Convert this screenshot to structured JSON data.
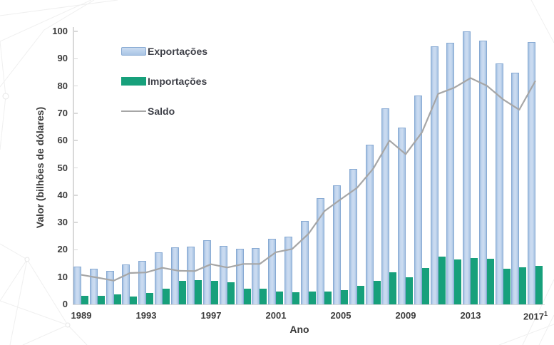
{
  "chart_data": {
    "type": "combo-bar-line",
    "title": "",
    "xlabel": "Ano",
    "ylabel": "Valor (bilhões de dólares)",
    "ylim": [
      0,
      100
    ],
    "y_ticks": [
      0,
      10,
      20,
      30,
      40,
      50,
      60,
      70,
      80,
      90,
      100
    ],
    "x_ticks": [
      {
        "label": "1989"
      },
      {
        "label": "1993"
      },
      {
        "label": "1997"
      },
      {
        "label": "2001"
      },
      {
        "label": "2005"
      },
      {
        "label": "2009"
      },
      {
        "label": "2013"
      },
      {
        "label": "2017",
        "sup": "1"
      }
    ],
    "grid": false,
    "legend_position": "upper-left-inside",
    "years": [
      1989,
      1990,
      1991,
      1992,
      1993,
      1994,
      1995,
      1996,
      1997,
      1998,
      1999,
      2000,
      2001,
      2002,
      2003,
      2004,
      2005,
      2006,
      2007,
      2008,
      2009,
      2010,
      2011,
      2012,
      2013,
      2014,
      2015,
      2016,
      2017
    ],
    "series": [
      {
        "name": "Exportações",
        "type": "bar",
        "color": "#b7cee9",
        "border_color": "#88aad3",
        "values": [
          13.9,
          13.0,
          12.4,
          14.5,
          15.9,
          19.1,
          21.0,
          21.1,
          23.4,
          21.5,
          20.5,
          20.6,
          23.9,
          24.8,
          30.6,
          39.0,
          43.6,
          49.5,
          58.4,
          71.8,
          64.8,
          76.4,
          94.6,
          95.8,
          99.9,
          96.7,
          88.2,
          84.9,
          96.0
        ]
      },
      {
        "name": "Importações",
        "type": "bar",
        "color": "#17a07b",
        "values": [
          3.1,
          3.2,
          3.6,
          2.9,
          4.2,
          5.7,
          8.6,
          8.9,
          8.7,
          8.0,
          5.7,
          5.8,
          4.8,
          4.4,
          4.7,
          4.8,
          5.1,
          6.7,
          8.7,
          11.8,
          9.8,
          13.4,
          17.5,
          16.4,
          17.1,
          16.6,
          13.1,
          13.6,
          14.2
        ]
      },
      {
        "name": "Saldo",
        "type": "line",
        "color": "#a6a6a6",
        "values": [
          10.8,
          9.8,
          8.7,
          11.5,
          11.7,
          13.4,
          12.3,
          12.2,
          14.7,
          13.5,
          14.8,
          14.8,
          19.1,
          20.3,
          25.8,
          34.2,
          38.5,
          42.7,
          49.7,
          60.0,
          55.0,
          63.0,
          77.1,
          79.4,
          82.9,
          80.1,
          75.1,
          71.3,
          81.9
        ]
      }
    ]
  }
}
